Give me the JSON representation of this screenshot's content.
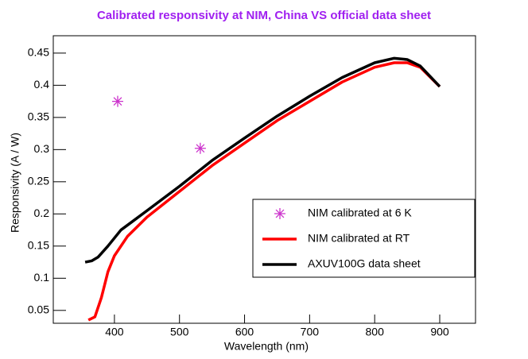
{
  "chart_data": {
    "type": "line",
    "title": "Calibrated responsivity at NIM, China VS official data sheet",
    "x_label": "Wavelength (nm)",
    "y_label": "Responsivity (A / W)",
    "xlim": [
      306,
      955
    ],
    "ylim": [
      0.03,
      0.477
    ],
    "xticks": [
      400,
      500,
      600,
      700,
      800,
      900
    ],
    "yticks": [
      0.05,
      0.1,
      0.15,
      0.2,
      0.25,
      0.3,
      0.35,
      0.4,
      0.45
    ],
    "legend": "right",
    "series": [
      {
        "name": "NIM calibrated at 6 K",
        "color": "#cc33cc",
        "marker": "star",
        "x": [
          405,
          532
        ],
        "values": [
          0.375,
          0.302
        ]
      },
      {
        "name": "NIM calibrated at RT",
        "color": "#ff0000",
        "x": [
          360,
          370,
          380,
          390,
          400,
          420,
          450,
          500,
          550,
          600,
          650,
          700,
          750,
          800,
          830,
          850,
          870,
          900
        ],
        "values": [
          0.035,
          0.04,
          0.07,
          0.11,
          0.135,
          0.165,
          0.195,
          0.235,
          0.275,
          0.31,
          0.345,
          0.375,
          0.405,
          0.428,
          0.435,
          0.435,
          0.428,
          0.398
        ]
      },
      {
        "name": "AXUV100G data sheet",
        "color": "#000000",
        "x": [
          355,
          365,
          375,
          390,
          410,
          430,
          450,
          500,
          550,
          600,
          650,
          700,
          750,
          800,
          830,
          850,
          870,
          900
        ],
        "values": [
          0.125,
          0.127,
          0.133,
          0.15,
          0.175,
          0.19,
          0.205,
          0.243,
          0.283,
          0.318,
          0.352,
          0.383,
          0.412,
          0.435,
          0.442,
          0.44,
          0.43,
          0.398
        ]
      }
    ]
  }
}
